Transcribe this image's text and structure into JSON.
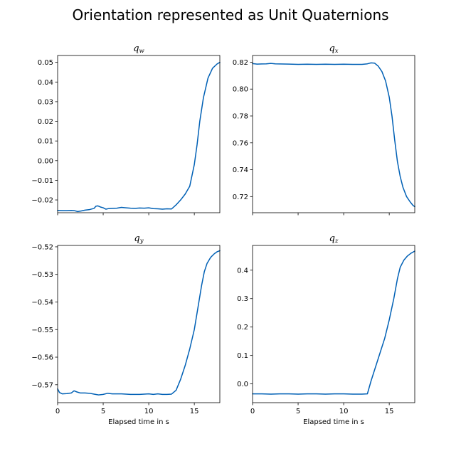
{
  "figure": {
    "suptitle": "Orientation represented as Unit Quaternions",
    "line_color": "#0060b5"
  },
  "chart_data": [
    {
      "type": "line",
      "title_base": "q",
      "title_sub": "w",
      "xlabel": "",
      "show_xtick_labels": false,
      "xlim": [
        0,
        17.8
      ],
      "ylim": [
        -0.0265,
        0.0535
      ],
      "xticks": [
        0,
        5,
        10,
        15
      ],
      "yticks": [
        -0.02,
        -0.01,
        0.0,
        0.01,
        0.02,
        0.03,
        0.04,
        0.05
      ],
      "ytick_labels": [
        "−0.02",
        "−0.01",
        "0.00",
        "0.01",
        "0.02",
        "0.03",
        "0.04",
        "0.05"
      ],
      "grid": false,
      "x": [
        0,
        0.5,
        1,
        1.5,
        1.8,
        2.2,
        2.6,
        3,
        3.5,
        4,
        4.2,
        4.4,
        4.7,
        5,
        5.3,
        5.6,
        6,
        6.5,
        7,
        7.5,
        8,
        8.5,
        9,
        9.5,
        10,
        10.5,
        11,
        11.5,
        12,
        12.5,
        13,
        13.5,
        14,
        14.5,
        15,
        15.3,
        15.6,
        16,
        16.5,
        17,
        17.5,
        17.8
      ],
      "y": [
        -0.0253,
        -0.0254,
        -0.0254,
        -0.0253,
        -0.0254,
        -0.0259,
        -0.0256,
        -0.0252,
        -0.0249,
        -0.0243,
        -0.0232,
        -0.023,
        -0.0236,
        -0.024,
        -0.0247,
        -0.0244,
        -0.0243,
        -0.0242,
        -0.0238,
        -0.024,
        -0.0242,
        -0.0243,
        -0.0241,
        -0.0242,
        -0.024,
        -0.0244,
        -0.0245,
        -0.0247,
        -0.0245,
        -0.0246,
        -0.0225,
        -0.02,
        -0.017,
        -0.013,
        -0.002,
        0.008,
        0.02,
        0.032,
        0.042,
        0.047,
        0.0492,
        0.05
      ]
    },
    {
      "type": "line",
      "title_base": "q",
      "title_sub": "x",
      "xlabel": "",
      "show_xtick_labels": false,
      "xlim": [
        0,
        17.8
      ],
      "ylim": [
        0.708,
        0.825
      ],
      "xticks": [
        0,
        5,
        10,
        15
      ],
      "yticks": [
        0.72,
        0.74,
        0.76,
        0.78,
        0.8,
        0.82
      ],
      "ytick_labels": [
        "0.72",
        "0.74",
        "0.76",
        "0.78",
        "0.80",
        "0.82"
      ],
      "grid": false,
      "x": [
        0,
        0.5,
        1,
        1.5,
        2,
        2.5,
        3,
        4,
        5,
        6,
        7,
        8,
        9,
        10,
        11,
        12,
        12.6,
        13,
        13.4,
        13.8,
        14.2,
        14.6,
        15,
        15.3,
        15.6,
        15.9,
        16.2,
        16.5,
        16.9,
        17.3,
        17.6,
        17.8
      ],
      "y": [
        0.819,
        0.8186,
        0.8187,
        0.8188,
        0.8191,
        0.8188,
        0.8187,
        0.8186,
        0.8184,
        0.8185,
        0.8184,
        0.8185,
        0.8184,
        0.8185,
        0.8184,
        0.8184,
        0.8188,
        0.8195,
        0.8193,
        0.817,
        0.813,
        0.806,
        0.794,
        0.78,
        0.762,
        0.746,
        0.735,
        0.727,
        0.72,
        0.716,
        0.7135,
        0.7125
      ]
    },
    {
      "type": "line",
      "title_base": "q",
      "title_sub": "y",
      "xlabel": "Elapsed time in s",
      "show_xtick_labels": true,
      "xlim": [
        0,
        17.8
      ],
      "ylim": [
        -0.5765,
        -0.5195
      ],
      "xticks": [
        0,
        5,
        10,
        15
      ],
      "xtick_labels": [
        "0",
        "5",
        "10",
        "15"
      ],
      "yticks": [
        -0.57,
        -0.56,
        -0.55,
        -0.54,
        -0.53,
        -0.52
      ],
      "ytick_labels": [
        "−0.57",
        "−0.56",
        "−0.55",
        "−0.54",
        "−0.53",
        "−0.52"
      ],
      "grid": false,
      "x": [
        0,
        0.2,
        0.5,
        1,
        1.5,
        1.8,
        2.1,
        2.5,
        3,
        3.5,
        4,
        4.5,
        5,
        5.5,
        6,
        7,
        8,
        9,
        10,
        10.5,
        11,
        11.5,
        12,
        12.5,
        13,
        13.5,
        14,
        14.5,
        15,
        15.5,
        15.8,
        16.1,
        16.4,
        16.8,
        17.2,
        17.5,
        17.8
      ],
      "y": [
        -0.5715,
        -0.5728,
        -0.5733,
        -0.5732,
        -0.573,
        -0.5722,
        -0.5726,
        -0.573,
        -0.573,
        -0.5731,
        -0.5734,
        -0.5737,
        -0.5735,
        -0.5731,
        -0.5733,
        -0.5733,
        -0.5735,
        -0.5735,
        -0.5733,
        -0.5735,
        -0.5733,
        -0.5735,
        -0.5735,
        -0.5734,
        -0.572,
        -0.568,
        -0.563,
        -0.557,
        -0.55,
        -0.54,
        -0.534,
        -0.529,
        -0.526,
        -0.5238,
        -0.5225,
        -0.5218,
        -0.5214
      ]
    },
    {
      "type": "line",
      "title_base": "q",
      "title_sub": "z",
      "xlabel": "Elapsed time in s",
      "show_xtick_labels": true,
      "xlim": [
        0,
        17.8
      ],
      "ylim": [
        -0.066,
        0.487
      ],
      "xticks": [
        0,
        5,
        10,
        15
      ],
      "xtick_labels": [
        "0",
        "5",
        "10",
        "15"
      ],
      "yticks": [
        0.0,
        0.1,
        0.2,
        0.3,
        0.4
      ],
      "ytick_labels": [
        "0.0",
        "0.1",
        "0.2",
        "0.3",
        "0.4"
      ],
      "grid": false,
      "x": [
        0,
        1,
        2,
        3,
        4,
        5,
        6,
        7,
        8,
        9,
        10,
        11,
        12,
        12.6,
        13,
        13.5,
        14,
        14.5,
        15,
        15.5,
        15.9,
        16.2,
        16.6,
        17,
        17.4,
        17.8
      ],
      "y": [
        -0.035,
        -0.035,
        -0.036,
        -0.035,
        -0.035,
        -0.036,
        -0.035,
        -0.035,
        -0.036,
        -0.035,
        -0.035,
        -0.036,
        -0.036,
        -0.035,
        0.01,
        0.06,
        0.11,
        0.16,
        0.225,
        0.3,
        0.37,
        0.41,
        0.435,
        0.45,
        0.46,
        0.467
      ]
    }
  ]
}
